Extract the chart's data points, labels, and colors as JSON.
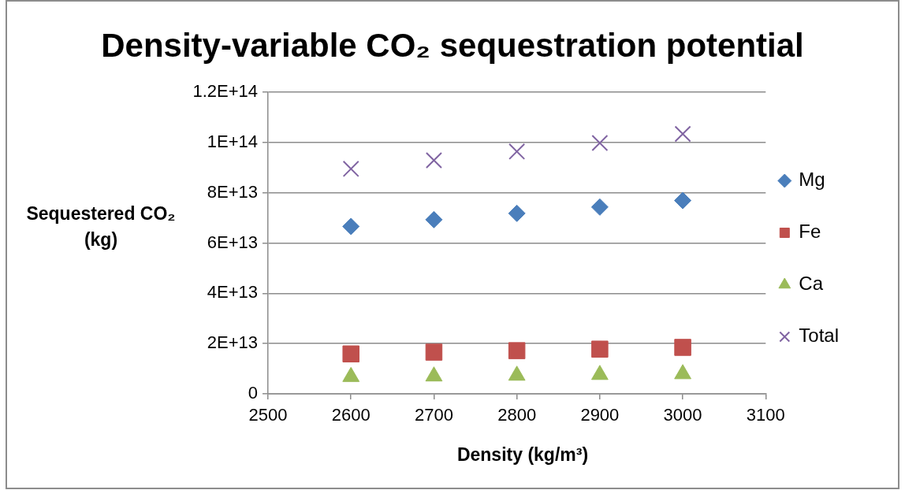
{
  "chart_data": {
    "type": "scatter",
    "title": "Density-variable CO₂ sequestration potential",
    "xlabel": "Density (kg/m³)",
    "ylabel": "Sequestered CO₂ (kg)",
    "x": [
      2600,
      2700,
      2800,
      2900,
      3000
    ],
    "series": [
      {
        "name": "Mg",
        "color": "#4a7ebb",
        "marker": "diamond",
        "values": [
          66600000000000.0,
          69300000000000.0,
          71800000000000.0,
          74300000000000.0,
          76900000000000.0
        ]
      },
      {
        "name": "Fe",
        "color": "#c0504d",
        "marker": "square",
        "values": [
          15900000000000.0,
          16600000000000.0,
          17200000000000.0,
          17800000000000.0,
          18500000000000.0
        ]
      },
      {
        "name": "Ca",
        "color": "#9bbb59",
        "marker": "triangle",
        "values": [
          6800000000000.0,
          7000000000000.0,
          7300000000000.0,
          7600000000000.0,
          7900000000000.0
        ]
      },
      {
        "name": "Total",
        "color": "#8064a2",
        "marker": "cross",
        "values": [
          89500000000000.0,
          92900000000000.0,
          96400000000000.0,
          99800000000000.0,
          103400000000000.0
        ]
      }
    ],
    "xlim": [
      2500,
      3100
    ],
    "xticks": [
      2500,
      2600,
      2700,
      2800,
      2900,
      3000,
      3100
    ],
    "ylim": [
      0,
      120000000000000.0
    ],
    "yticks": [
      0,
      {
        "value": 20000000000000.0,
        "label": "2E+13"
      },
      {
        "value": 40000000000000.0,
        "label": "4E+13"
      },
      {
        "value": 60000000000000.0,
        "label": "6E+13"
      },
      {
        "value": 80000000000000.0,
        "label": "8E+13"
      },
      {
        "value": 100000000000000.0,
        "label": "1E+14"
      },
      {
        "value": 120000000000000.0,
        "label": "1.2E+14"
      }
    ],
    "grid": "y",
    "legend": "right"
  }
}
